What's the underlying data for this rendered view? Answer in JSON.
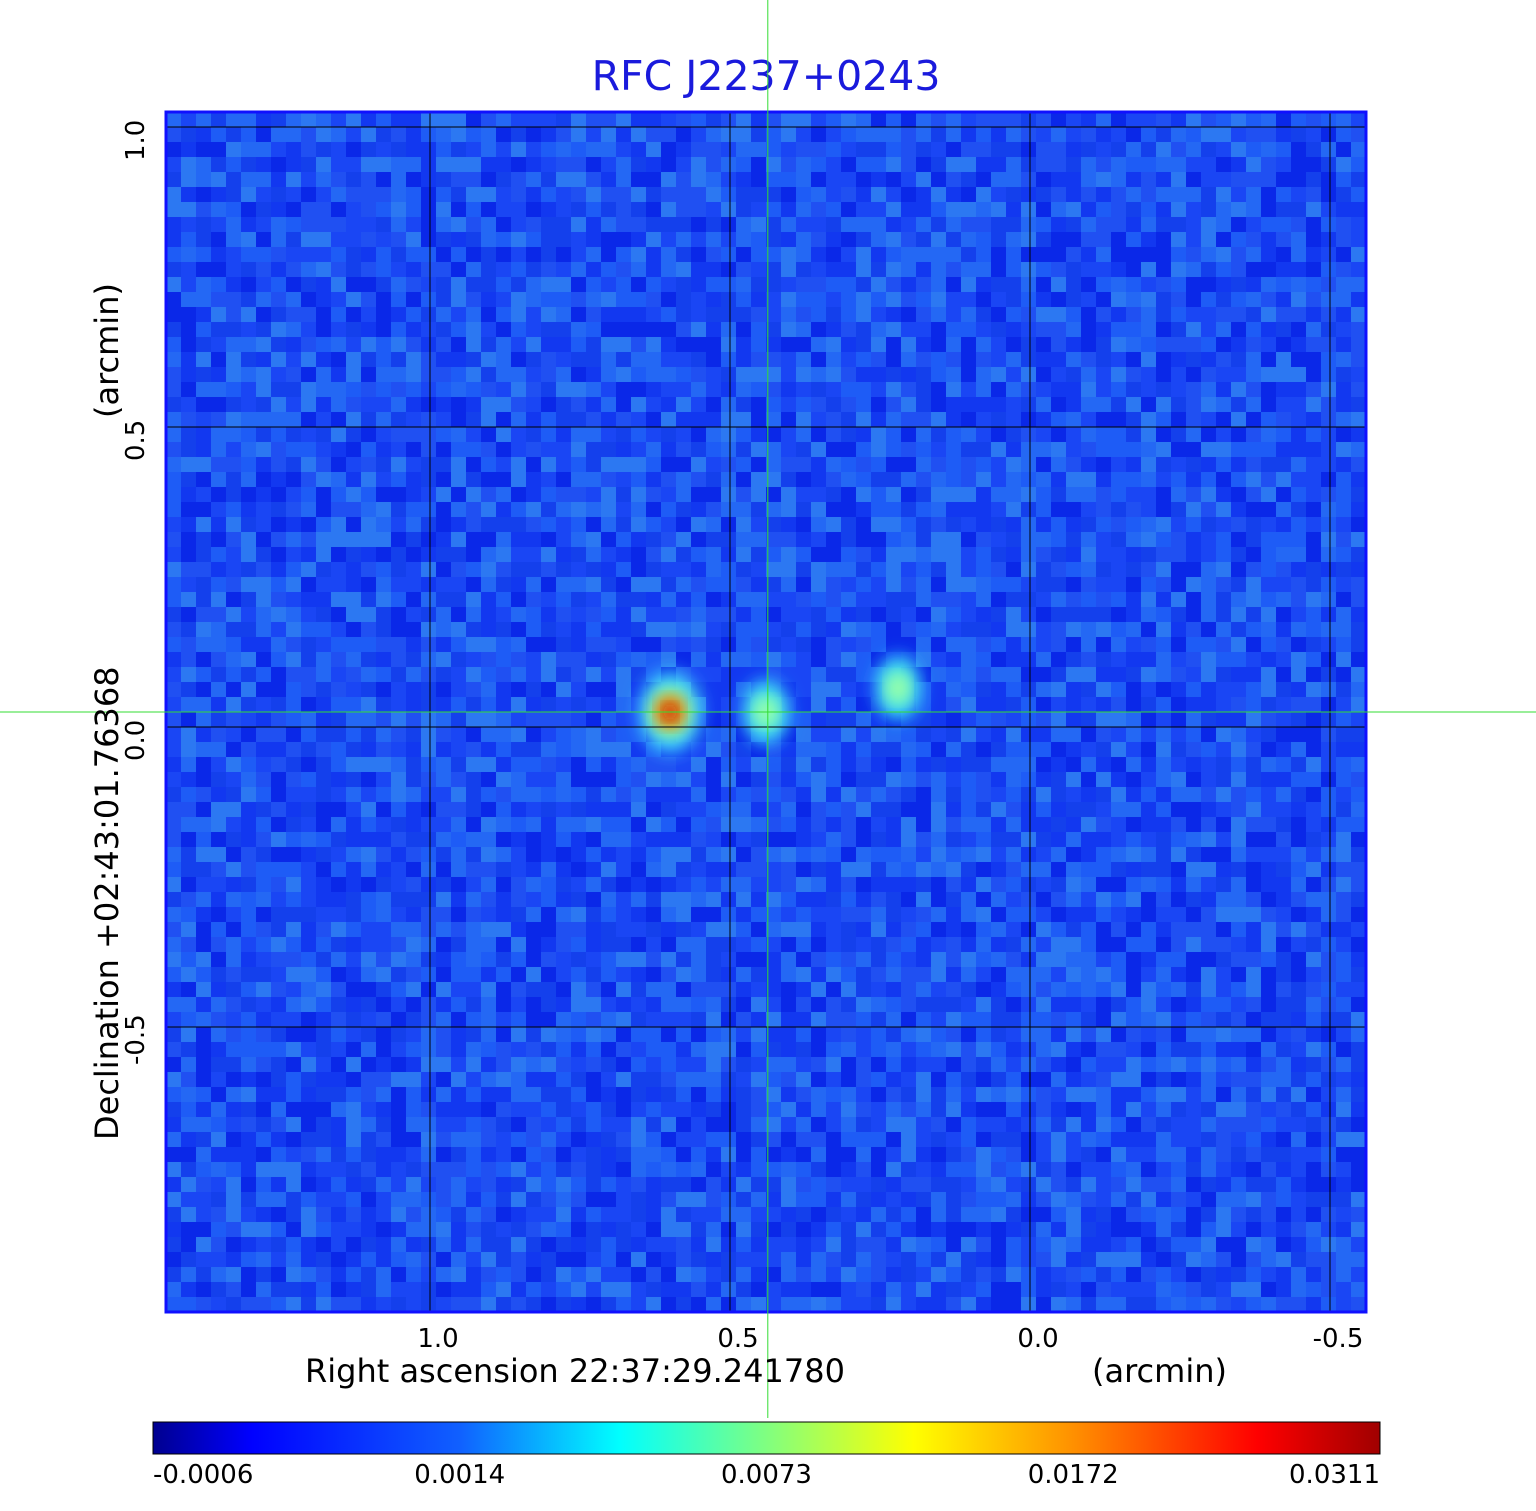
{
  "chart_data": {
    "type": "heatmap",
    "title": "RFC J2237+0243",
    "xlabel": "Right ascension  22:37:29.241780",
    "xunit": "(arcmin)",
    "ylabel": "Declination  +02:43:01.76368",
    "yunit": "(arcmin)",
    "x_ticks": [
      "1.0",
      "0.5",
      "0.0",
      "-0.5"
    ],
    "y_ticks": [
      "1.0",
      "0.5",
      "0.0",
      "-0.5"
    ],
    "x_tick_values": [
      1.0,
      0.5,
      0.0,
      -0.5
    ],
    "y_tick_values": [
      1.0,
      0.5,
      0.0,
      -0.5
    ],
    "xlim": [
      1.44,
      -0.56
    ],
    "ylim": [
      -1.0,
      1.0
    ],
    "grid": true,
    "crosshair": {
      "x": 0.437,
      "y": 0.0
    },
    "colorbar": {
      "colormap": "jet",
      "scale": "nonlinear",
      "ticks": [
        "-0.0006",
        "0.0014",
        "0.0073",
        "0.0172",
        "0.0311"
      ]
    },
    "sources": [
      {
        "x": 0.6,
        "y": 0.0,
        "peak": 0.0311
      },
      {
        "x": 0.44,
        "y": 0.0,
        "peak": 0.0073
      },
      {
        "x": 0.22,
        "y": 0.04,
        "peak": 0.0065
      }
    ],
    "colors": {
      "title": "#1a1adc",
      "crosshair": "#33dd33",
      "frame": "#1010ff",
      "grid": "#000000"
    }
  }
}
